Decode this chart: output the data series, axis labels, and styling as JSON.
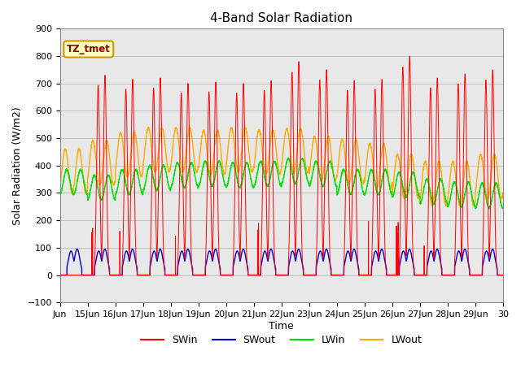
{
  "title": "4-Band Solar Radiation",
  "xlabel": "Time",
  "ylabel": "Solar Radiation (W/m2)",
  "ylim": [
    -100,
    900
  ],
  "xlim_days": [
    14.0,
    30.0
  ],
  "tag_label": "TZ_tmet",
  "line_colors": {
    "SWin": "#ff0000",
    "SWout": "#0000cc",
    "LWin": "#00dd00",
    "LWout": "#ffaa00"
  },
  "legend_labels": [
    "SWin",
    "SWout",
    "LWin",
    "LWout"
  ],
  "xtick_positions": [
    14,
    15,
    16,
    17,
    18,
    19,
    20,
    21,
    22,
    23,
    24,
    25,
    26,
    27,
    28,
    29,
    30
  ],
  "xtick_labels": [
    "Jun",
    "15Jun",
    "16Jun",
    "17Jun",
    "18Jun",
    "19Jun",
    "20Jun",
    "21Jun",
    "22Jun",
    "23Jun",
    "24Jun",
    "25Jun",
    "26Jun",
    "27Jun",
    "28Jun",
    "29Jun",
    "30"
  ],
  "ytick_positions": [
    -100,
    0,
    100,
    200,
    300,
    400,
    500,
    600,
    700,
    800,
    900
  ],
  "bg_color": "#e8e8e8",
  "title_fontsize": 11,
  "axis_fontsize": 9,
  "tick_fontsize": 8,
  "legend_fontsize": 9,
  "figsize": [
    6.4,
    4.8
  ],
  "dpi": 100
}
